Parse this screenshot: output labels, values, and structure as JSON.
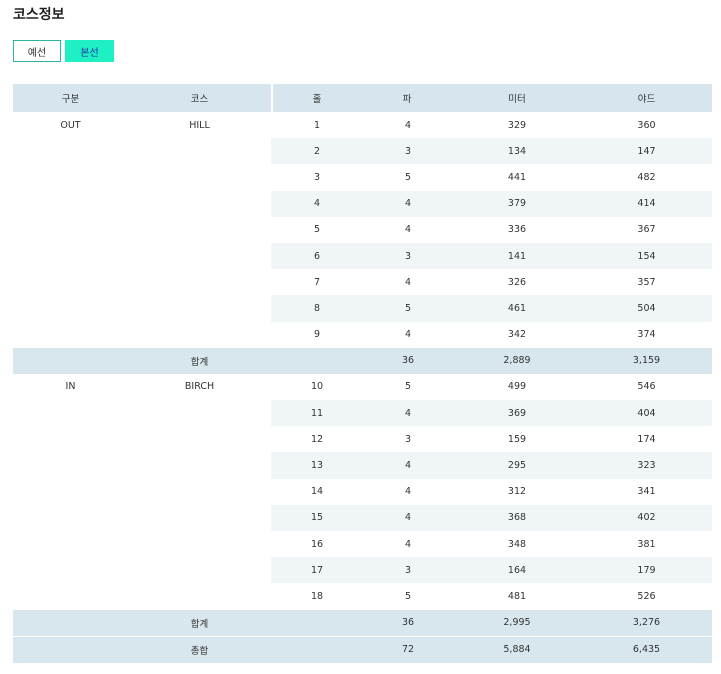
{
  "page": {
    "title": "코스정보"
  },
  "tabs": [
    {
      "label": "예선",
      "active": false
    },
    {
      "label": "본선",
      "active": true
    }
  ],
  "table": {
    "headers": {
      "division": "구분",
      "course": "코스",
      "hole": "홀",
      "par": "파",
      "meter": "미터",
      "yard": "야드"
    },
    "out": {
      "division": "OUT",
      "course": "HILL",
      "holes": [
        {
          "hole": "1",
          "par": "4",
          "meter": "329",
          "yard": "360"
        },
        {
          "hole": "2",
          "par": "3",
          "meter": "134",
          "yard": "147"
        },
        {
          "hole": "3",
          "par": "5",
          "meter": "441",
          "yard": "482"
        },
        {
          "hole": "4",
          "par": "4",
          "meter": "379",
          "yard": "414"
        },
        {
          "hole": "5",
          "par": "4",
          "meter": "336",
          "yard": "367"
        },
        {
          "hole": "6",
          "par": "3",
          "meter": "141",
          "yard": "154"
        },
        {
          "hole": "7",
          "par": "4",
          "meter": "326",
          "yard": "357"
        },
        {
          "hole": "8",
          "par": "5",
          "meter": "461",
          "yard": "504"
        },
        {
          "hole": "9",
          "par": "4",
          "meter": "342",
          "yard": "374"
        }
      ],
      "subtotal": {
        "label": "합계",
        "par": "36",
        "meter": "2,889",
        "yard": "3,159"
      }
    },
    "in": {
      "division": "IN",
      "course": "BIRCH",
      "holes": [
        {
          "hole": "10",
          "par": "5",
          "meter": "499",
          "yard": "546"
        },
        {
          "hole": "11",
          "par": "4",
          "meter": "369",
          "yard": "404"
        },
        {
          "hole": "12",
          "par": "3",
          "meter": "159",
          "yard": "174"
        },
        {
          "hole": "13",
          "par": "4",
          "meter": "295",
          "yard": "323"
        },
        {
          "hole": "14",
          "par": "4",
          "meter": "312",
          "yard": "341"
        },
        {
          "hole": "15",
          "par": "4",
          "meter": "368",
          "yard": "402"
        },
        {
          "hole": "16",
          "par": "4",
          "meter": "348",
          "yard": "381"
        },
        {
          "hole": "17",
          "par": "3",
          "meter": "164",
          "yard": "179"
        },
        {
          "hole": "18",
          "par": "5",
          "meter": "481",
          "yard": "526"
        }
      ],
      "subtotal": {
        "label": "합계",
        "par": "36",
        "meter": "2,995",
        "yard": "3,276"
      }
    },
    "total": {
      "label": "총합",
      "par": "72",
      "meter": "5,884",
      "yard": "6,435"
    }
  }
}
